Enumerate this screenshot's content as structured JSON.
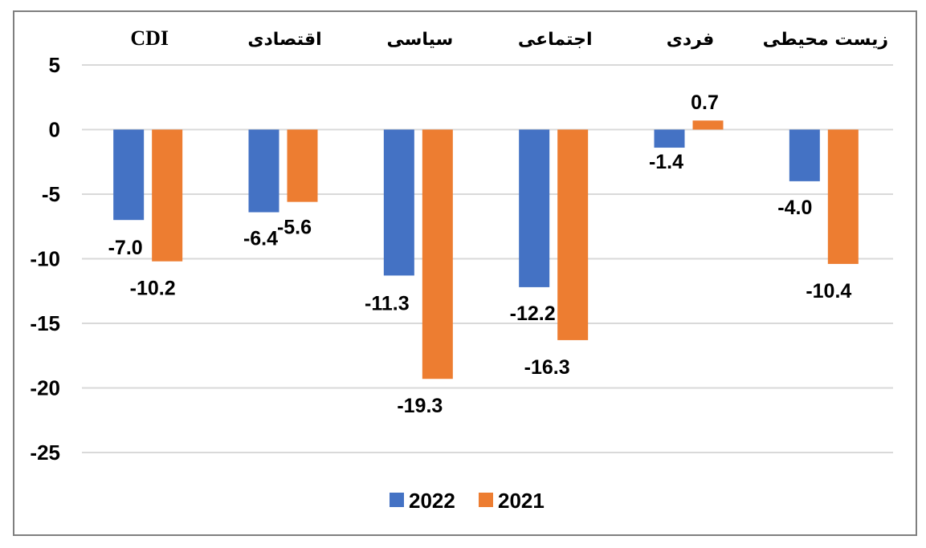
{
  "chart_data": {
    "type": "bar",
    "title": "",
    "xlabel": "",
    "ylabel": "",
    "categories": [
      "CDI",
      "اقتصادی",
      "سیاسی",
      "اجتماعی",
      "فردی",
      "زیست محیطی"
    ],
    "series": [
      {
        "name": "2022",
        "color": "#4472C4",
        "values": [
          -7.0,
          -6.4,
          -11.3,
          -12.2,
          -1.4,
          -4.0
        ]
      },
      {
        "name": "2021",
        "color": "#ED7D31",
        "values": [
          -10.2,
          -5.6,
          -19.3,
          -16.3,
          0.7,
          -10.4
        ]
      }
    ],
    "data_labels": [
      [
        "-7.0",
        "-6.4",
        "-11.3",
        "-12.2",
        "-1.4",
        "-4.0"
      ],
      [
        "-10.2",
        "-5.6",
        "-19.3",
        "-16.3",
        "0.7",
        "-10.4"
      ]
    ],
    "ylim": [
      -25,
      5
    ],
    "yticks": [
      5,
      0,
      -5,
      -10,
      -15,
      -20,
      -25
    ],
    "ytick_labels": [
      "5",
      "0",
      "-5",
      "-10",
      "-15",
      "-20",
      "-25"
    ],
    "grid": true,
    "legend_position": "bottom",
    "category_axis_position": "top"
  }
}
